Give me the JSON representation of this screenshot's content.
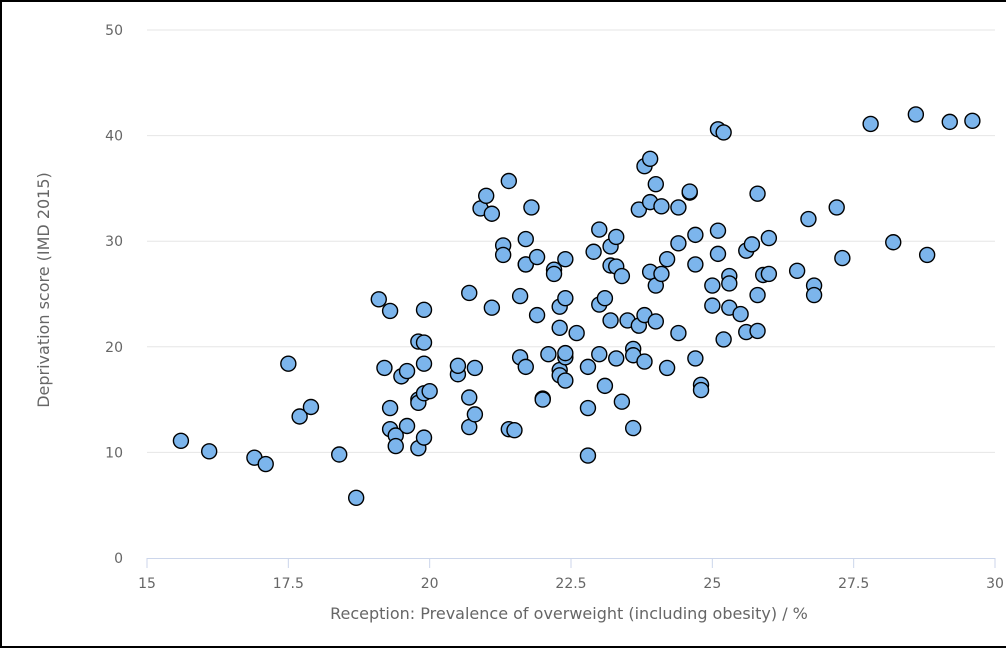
{
  "chart_data": {
    "type": "scatter",
    "title": "",
    "xlabel": "Reception: Prevalence of overweight (including obesity) / %",
    "ylabel": "Deprivation score (IMD 2015)",
    "xlim": [
      15,
      30
    ],
    "ylim": [
      0,
      50
    ],
    "x_ticks": [
      "15",
      "17.5",
      "20",
      "22.5",
      "25",
      "27.5",
      "30"
    ],
    "y_ticks": [
      "0",
      "10",
      "20",
      "30",
      "40",
      "50"
    ],
    "grid": "horizontal",
    "legend": "none",
    "marker_color": "#7cb5ec",
    "marker_outline": "#000000",
    "points": [
      [
        15.6,
        11.1
      ],
      [
        16.1,
        10.1
      ],
      [
        16.9,
        9.5
      ],
      [
        17.1,
        8.9
      ],
      [
        17.5,
        18.4
      ],
      [
        17.7,
        13.4
      ],
      [
        17.9,
        14.3
      ],
      [
        18.4,
        9.8
      ],
      [
        18.7,
        5.7
      ],
      [
        19.1,
        24.5
      ],
      [
        19.2,
        18.0
      ],
      [
        19.3,
        23.4
      ],
      [
        19.3,
        14.2
      ],
      [
        19.3,
        12.2
      ],
      [
        19.4,
        11.6
      ],
      [
        19.4,
        10.6
      ],
      [
        19.5,
        17.2
      ],
      [
        19.6,
        12.5
      ],
      [
        19.6,
        17.7
      ],
      [
        19.8,
        15.0
      ],
      [
        19.8,
        14.7
      ],
      [
        19.8,
        20.5
      ],
      [
        19.8,
        10.4
      ],
      [
        19.9,
        15.6
      ],
      [
        19.9,
        11.4
      ],
      [
        19.9,
        18.4
      ],
      [
        19.9,
        20.4
      ],
      [
        19.9,
        23.5
      ],
      [
        20.0,
        15.8
      ],
      [
        20.5,
        17.4
      ],
      [
        20.5,
        18.2
      ],
      [
        20.7,
        25.1
      ],
      [
        20.7,
        15.2
      ],
      [
        20.7,
        12.4
      ],
      [
        20.8,
        18.0
      ],
      [
        20.8,
        13.6
      ],
      [
        20.9,
        33.1
      ],
      [
        21.0,
        34.3
      ],
      [
        21.1,
        32.6
      ],
      [
        21.1,
        23.7
      ],
      [
        21.3,
        29.6
      ],
      [
        21.3,
        28.7
      ],
      [
        21.4,
        35.7
      ],
      [
        21.4,
        12.2
      ],
      [
        21.5,
        12.1
      ],
      [
        21.6,
        19.0
      ],
      [
        21.6,
        24.8
      ],
      [
        21.7,
        30.2
      ],
      [
        21.7,
        27.8
      ],
      [
        21.7,
        18.1
      ],
      [
        21.7,
        27.8
      ],
      [
        21.8,
        33.2
      ],
      [
        21.9,
        23.0
      ],
      [
        21.9,
        28.5
      ],
      [
        22.0,
        15.1
      ],
      [
        22.0,
        15.0
      ],
      [
        22.1,
        19.3
      ],
      [
        22.2,
        27.3
      ],
      [
        22.2,
        26.9
      ],
      [
        22.3,
        23.8
      ],
      [
        22.3,
        21.8
      ],
      [
        22.3,
        17.8
      ],
      [
        22.3,
        17.3
      ],
      [
        22.4,
        28.3
      ],
      [
        22.4,
        24.6
      ],
      [
        22.4,
        19.0
      ],
      [
        22.4,
        16.8
      ],
      [
        22.4,
        19.4
      ],
      [
        22.6,
        21.3
      ],
      [
        22.8,
        18.1
      ],
      [
        22.8,
        14.2
      ],
      [
        22.8,
        9.7
      ],
      [
        22.9,
        29.0
      ],
      [
        23.0,
        31.1
      ],
      [
        23.0,
        24.0
      ],
      [
        23.0,
        19.3
      ],
      [
        23.1,
        24.6
      ],
      [
        23.1,
        16.3
      ],
      [
        23.2,
        29.5
      ],
      [
        23.2,
        27.7
      ],
      [
        23.2,
        22.5
      ],
      [
        23.3,
        30.4
      ],
      [
        23.3,
        27.6
      ],
      [
        23.3,
        18.9
      ],
      [
        23.4,
        26.7
      ],
      [
        23.4,
        14.8
      ],
      [
        23.5,
        22.5
      ],
      [
        23.6,
        19.8
      ],
      [
        23.6,
        19.2
      ],
      [
        23.6,
        12.3
      ],
      [
        23.7,
        33.0
      ],
      [
        23.7,
        22.0
      ],
      [
        23.8,
        37.1
      ],
      [
        23.8,
        23.0
      ],
      [
        23.8,
        18.6
      ],
      [
        23.9,
        37.8
      ],
      [
        23.9,
        33.7
      ],
      [
        23.9,
        27.1
      ],
      [
        24.0,
        35.4
      ],
      [
        24.0,
        25.8
      ],
      [
        24.0,
        22.4
      ],
      [
        24.1,
        26.9
      ],
      [
        24.1,
        33.3
      ],
      [
        24.2,
        28.3
      ],
      [
        24.2,
        18.0
      ],
      [
        24.4,
        33.2
      ],
      [
        24.4,
        29.8
      ],
      [
        24.4,
        21.3
      ],
      [
        24.6,
        34.6
      ],
      [
        24.6,
        34.7
      ],
      [
        24.7,
        30.6
      ],
      [
        24.7,
        27.8
      ],
      [
        24.7,
        18.9
      ],
      [
        24.8,
        16.4
      ],
      [
        24.8,
        15.9
      ],
      [
        25.0,
        25.8
      ],
      [
        25.0,
        23.9
      ],
      [
        25.1,
        31.0
      ],
      [
        25.1,
        28.8
      ],
      [
        25.1,
        40.6
      ],
      [
        25.2,
        40.3
      ],
      [
        25.2,
        20.7
      ],
      [
        25.3,
        23.7
      ],
      [
        25.3,
        26.7
      ],
      [
        25.3,
        26.0
      ],
      [
        25.5,
        23.1
      ],
      [
        25.6,
        29.1
      ],
      [
        25.6,
        21.4
      ],
      [
        25.7,
        29.7
      ],
      [
        25.8,
        34.5
      ],
      [
        25.8,
        21.5
      ],
      [
        25.8,
        24.9
      ],
      [
        25.9,
        26.8
      ],
      [
        26.0,
        30.3
      ],
      [
        26.0,
        26.9
      ],
      [
        26.5,
        27.2
      ],
      [
        26.7,
        32.1
      ],
      [
        26.8,
        25.8
      ],
      [
        26.8,
        24.9
      ],
      [
        27.2,
        33.2
      ],
      [
        27.3,
        28.4
      ],
      [
        27.8,
        41.1
      ],
      [
        28.2,
        29.9
      ],
      [
        28.6,
        42.0
      ],
      [
        28.8,
        28.7
      ],
      [
        29.2,
        41.3
      ],
      [
        29.6,
        41.4
      ]
    ]
  }
}
